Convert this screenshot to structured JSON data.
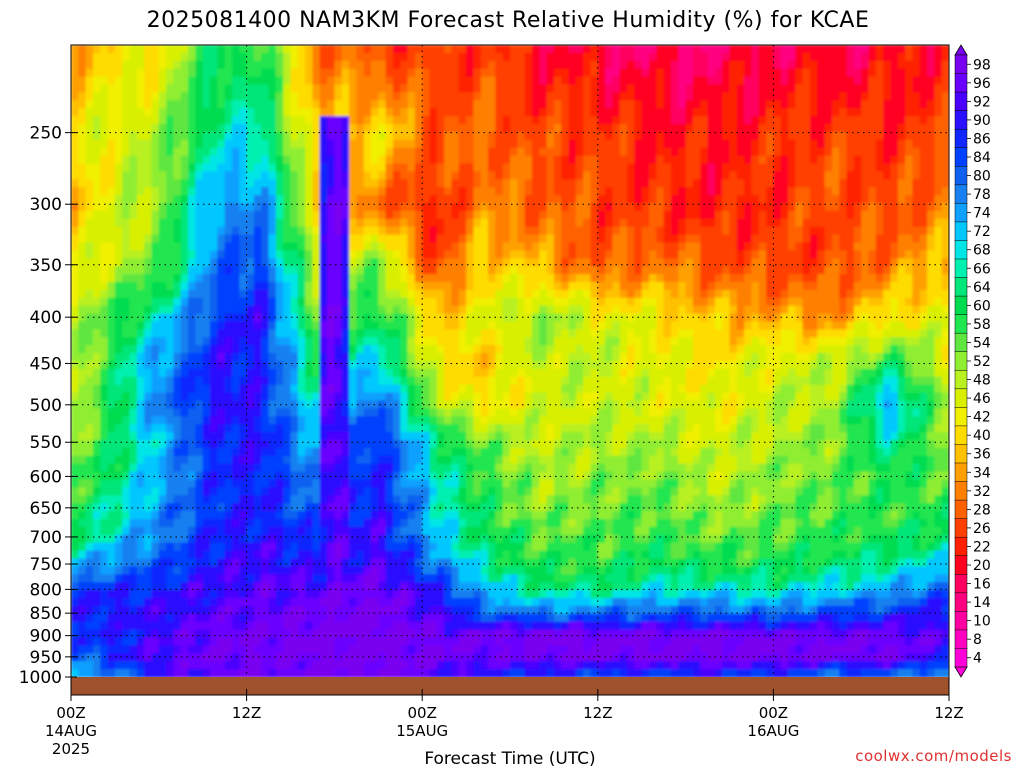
{
  "chart_data": {
    "type": "heatmap",
    "title": "2025081400 NAM3KM Forecast Relative Humidity (%) for KCAE",
    "xlabel": "Forecast Time (UTC)",
    "ylabel": "",
    "credit": "coolwx.com/models",
    "y_axis_reversed": true,
    "y_range": [
      1000,
      200
    ],
    "y_ticks": [
      250,
      300,
      350,
      400,
      450,
      500,
      550,
      600,
      650,
      700,
      750,
      800,
      850,
      900,
      950,
      1000
    ],
    "x_range_hours": [
      0,
      60
    ],
    "x_ticks": [
      {
        "hour": 0,
        "time": "00Z",
        "date": "14AUG",
        "year": "2025"
      },
      {
        "hour": 12,
        "time": "12Z",
        "date": "",
        "year": ""
      },
      {
        "hour": 24,
        "time": "00Z",
        "date": "15AUG",
        "year": ""
      },
      {
        "hour": 36,
        "time": "12Z",
        "date": "",
        "year": ""
      },
      {
        "hour": 48,
        "time": "00Z",
        "date": "16AUG",
        "year": ""
      },
      {
        "hour": 60,
        "time": "12Z",
        "date": "",
        "year": ""
      }
    ],
    "grid": true,
    "ground_color": "#a0522d",
    "colorbar_labels": [
      "98",
      "96",
      "92",
      "90",
      "86",
      "84",
      "80",
      "78",
      "74",
      "72",
      "68",
      "66",
      "64",
      "60",
      "58",
      "54",
      "52",
      "48",
      "46",
      "42",
      "40",
      "36",
      "34",
      "32",
      "28",
      "26",
      "22",
      "20",
      "16",
      "14",
      "10",
      "8",
      "4"
    ],
    "colorbar_colors": [
      "#7a00f0",
      "#6a00ff",
      "#4a00ff",
      "#2a10ff",
      "#1028ff",
      "#0040ff",
      "#1060f0",
      "#1880f0",
      "#10a0ff",
      "#00c8ff",
      "#00e6e6",
      "#00f0b0",
      "#00e678",
      "#00dc50",
      "#20e650",
      "#60e640",
      "#90ee30",
      "#b8f020",
      "#d8f000",
      "#f0f000",
      "#ffdc00",
      "#ffc000",
      "#ffa000",
      "#ff8000",
      "#ff6000",
      "#ff4000",
      "#ff2000",
      "#ff0020",
      "#ff0060",
      "#ff0080",
      "#ff00a0",
      "#ff00c0",
      "#ff00d8"
    ],
    "rh_profile": {
      "levels_hpa": [
        1000,
        950,
        900,
        850,
        800,
        750,
        700,
        650,
        600,
        550,
        500,
        450,
        400,
        350,
        300,
        250,
        200
      ],
      "hours": [
        0,
        6,
        10,
        13,
        17,
        21,
        25,
        28,
        32,
        36,
        40,
        44,
        48,
        52,
        56,
        60
      ],
      "rh": [
        [
          66,
          86,
          94,
          94,
          97,
          97,
          92,
          86,
          84,
          80,
          82,
          84,
          82,
          76,
          78,
          70
        ],
        [
          78,
          92,
          96,
          96,
          97,
          98,
          96,
          94,
          96,
          97,
          97,
          97,
          97,
          96,
          96,
          88
        ],
        [
          82,
          90,
          95,
          96,
          97,
          98,
          95,
          96,
          98,
          97,
          97,
          97,
          97,
          96,
          95,
          92
        ],
        [
          86,
          88,
          92,
          94,
          96,
          98,
          90,
          80,
          76,
          78,
          80,
          80,
          78,
          82,
          84,
          88
        ],
        [
          84,
          86,
          90,
          92,
          92,
          96,
          86,
          72,
          62,
          62,
          66,
          66,
          64,
          68,
          72,
          80
        ],
        [
          70,
          80,
          88,
          90,
          86,
          92,
          76,
          64,
          56,
          56,
          60,
          58,
          58,
          60,
          64,
          68
        ],
        [
          60,
          76,
          86,
          88,
          82,
          90,
          70,
          60,
          54,
          54,
          56,
          52,
          54,
          56,
          58,
          60
        ],
        [
          56,
          74,
          84,
          86,
          78,
          88,
          68,
          58,
          50,
          52,
          54,
          48,
          52,
          54,
          56,
          56
        ],
        [
          52,
          72,
          84,
          86,
          74,
          86,
          66,
          56,
          48,
          50,
          52,
          46,
          50,
          52,
          58,
          52
        ],
        [
          48,
          70,
          86,
          88,
          70,
          86,
          62,
          52,
          46,
          48,
          48,
          44,
          48,
          50,
          64,
          50
        ],
        [
          44,
          76,
          88,
          86,
          64,
          80,
          48,
          40,
          44,
          46,
          44,
          42,
          46,
          48,
          74,
          48
        ],
        [
          44,
          74,
          88,
          86,
          58,
          70,
          40,
          36,
          46,
          46,
          42,
          40,
          44,
          46,
          58,
          44
        ],
        [
          46,
          66,
          84,
          88,
          50,
          60,
          36,
          42,
          50,
          44,
          40,
          36,
          34,
          32,
          40,
          42
        ],
        [
          40,
          52,
          78,
          82,
          44,
          52,
          22,
          38,
          34,
          26,
          30,
          26,
          24,
          24,
          30,
          36
        ],
        [
          36,
          50,
          74,
          76,
          36,
          28,
          20,
          30,
          28,
          24,
          22,
          20,
          22,
          26,
          24,
          30
        ],
        [
          40,
          48,
          64,
          66,
          34,
          40,
          26,
          28,
          24,
          24,
          20,
          20,
          22,
          24,
          22,
          24
        ],
        [
          34,
          40,
          60,
          56,
          28,
          24,
          22,
          24,
          18,
          16,
          14,
          14,
          16,
          16,
          18,
          20
        ]
      ],
      "narrow_moist_column": {
        "hour": 18,
        "rh": 94
      }
    }
  }
}
